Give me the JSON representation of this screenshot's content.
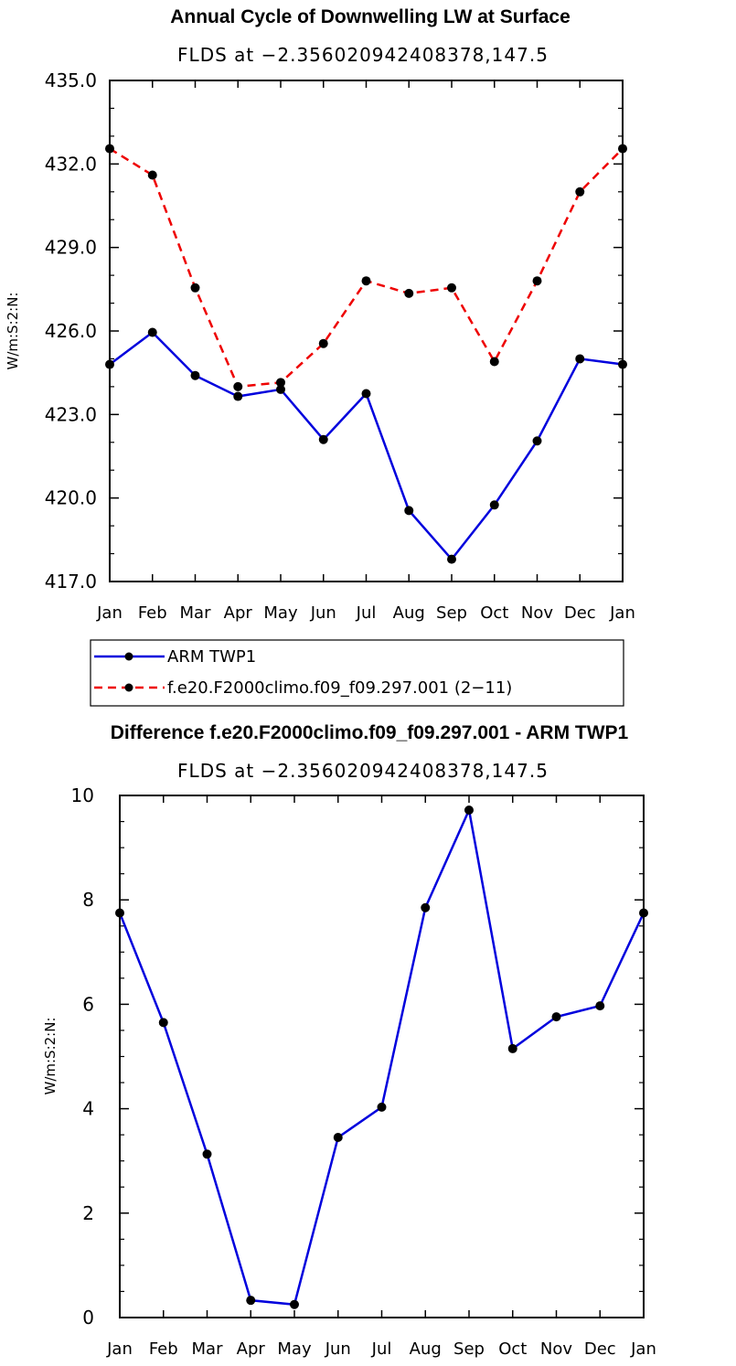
{
  "chart_data": [
    {
      "type": "line",
      "title": "Annual Cycle of Downwelling LW at Surface",
      "subtitle": "FLDS at −2.356020942408378,147.5",
      "ylabel": "W/m:S:2:N:",
      "xlabel": "",
      "categories": [
        "Jan",
        "Feb",
        "Mar",
        "Apr",
        "May",
        "Jun",
        "Jul",
        "Aug",
        "Sep",
        "Oct",
        "Nov",
        "Dec",
        "Jan"
      ],
      "ylim": [
        417.0,
        435.0
      ],
      "yticks": [
        "417.0",
        "420.0",
        "423.0",
        "426.0",
        "429.0",
        "432.0",
        "435.0"
      ],
      "series": [
        {
          "name": "ARM TWP1",
          "color": "#0000dd",
          "dashed": false,
          "values": [
            424.8,
            425.95,
            424.4,
            423.65,
            423.9,
            422.1,
            423.75,
            419.55,
            417.8,
            419.75,
            422.05,
            425.0,
            424.8
          ]
        },
        {
          "name": "f.e20.F2000climo.f09_f09.297.001 (2−11)",
          "color": "#ee0000",
          "dashed": true,
          "values": [
            432.55,
            431.6,
            427.55,
            424.0,
            424.15,
            425.55,
            427.8,
            427.35,
            427.55,
            424.9,
            427.8,
            431.0,
            432.55
          ]
        }
      ],
      "legend": [
        "ARM TWP1",
        "f.e20.F2000climo.f09_f09.297.001 (2−11)"
      ]
    },
    {
      "type": "line",
      "title": "Difference f.e20.F2000climo.f09_f09.297.001 - ARM TWP1",
      "subtitle": "FLDS at −2.356020942408378,147.5",
      "ylabel": "W/m:S:2:N:",
      "xlabel": "",
      "categories": [
        "Jan",
        "Feb",
        "Mar",
        "Apr",
        "May",
        "Jun",
        "Jul",
        "Aug",
        "Sep",
        "Oct",
        "Nov",
        "Dec",
        "Jan"
      ],
      "ylim": [
        0,
        10
      ],
      "yticks": [
        "0",
        "2",
        "4",
        "6",
        "8",
        "10"
      ],
      "series": [
        {
          "name": "Difference",
          "color": "#0000dd",
          "dashed": false,
          "values": [
            7.75,
            5.65,
            3.13,
            0.33,
            0.25,
            3.45,
            4.03,
            7.85,
            9.72,
            5.15,
            5.76,
            5.97,
            7.75
          ]
        }
      ]
    }
  ]
}
